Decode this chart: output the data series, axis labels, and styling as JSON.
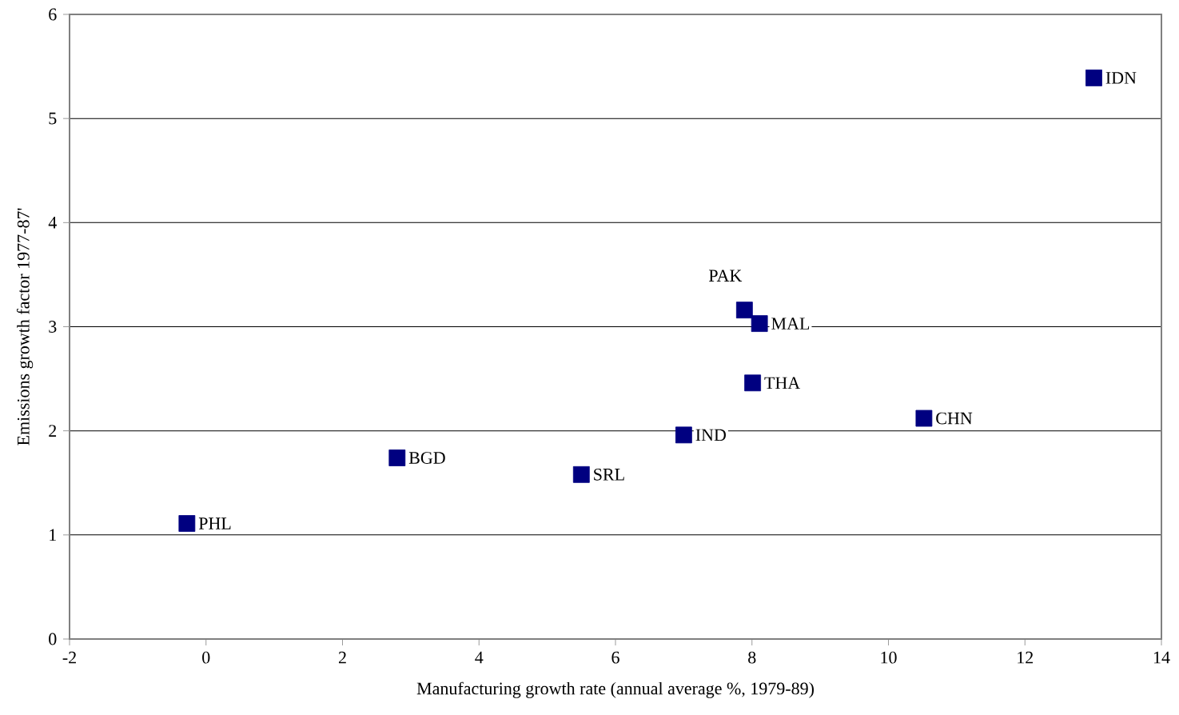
{
  "chart_data": {
    "type": "scatter",
    "xlabel": "Manufacturing growth rate (annual average %, 1979-89)",
    "ylabel": "Emissions growth factor 1977-87'",
    "x": [
      -0.28,
      2.8,
      5.5,
      7.0,
      8.01,
      7.89,
      8.11,
      10.52,
      13.01
    ],
    "series": [
      {
        "color": "#000080",
        "values": [
          1.11,
          1.74,
          1.58,
          1.96,
          2.46,
          3.16,
          3.03,
          2.12,
          5.39
        ]
      }
    ],
    "annotations": [
      {
        "text": "PHL",
        "x": -0.28,
        "y": 1.11
      },
      {
        "text": "BGD",
        "x": 2.8,
        "y": 1.74
      },
      {
        "text": "SRL",
        "x": 5.5,
        "y": 1.58
      },
      {
        "text": "IND",
        "x": 7.0,
        "y": 1.96
      },
      {
        "text": "THA",
        "x": 8.01,
        "y": 2.46
      },
      {
        "text": "PAK",
        "x": 7.89,
        "y": 3.16
      },
      {
        "text": "MAL",
        "x": 8.11,
        "y": 3.03
      },
      {
        "text": "CHN",
        "x": 10.52,
        "y": 2.12
      },
      {
        "text": "IDN",
        "x": 13.01,
        "y": 5.39
      }
    ],
    "xlim": [
      -2,
      14
    ],
    "ylim": [
      0,
      6
    ],
    "xticks": [
      -2,
      0,
      2,
      4,
      6,
      8,
      10,
      12,
      14
    ],
    "yticks": [
      0,
      1,
      2,
      3,
      4,
      5,
      6
    ],
    "grid": "y",
    "marker": "square"
  }
}
